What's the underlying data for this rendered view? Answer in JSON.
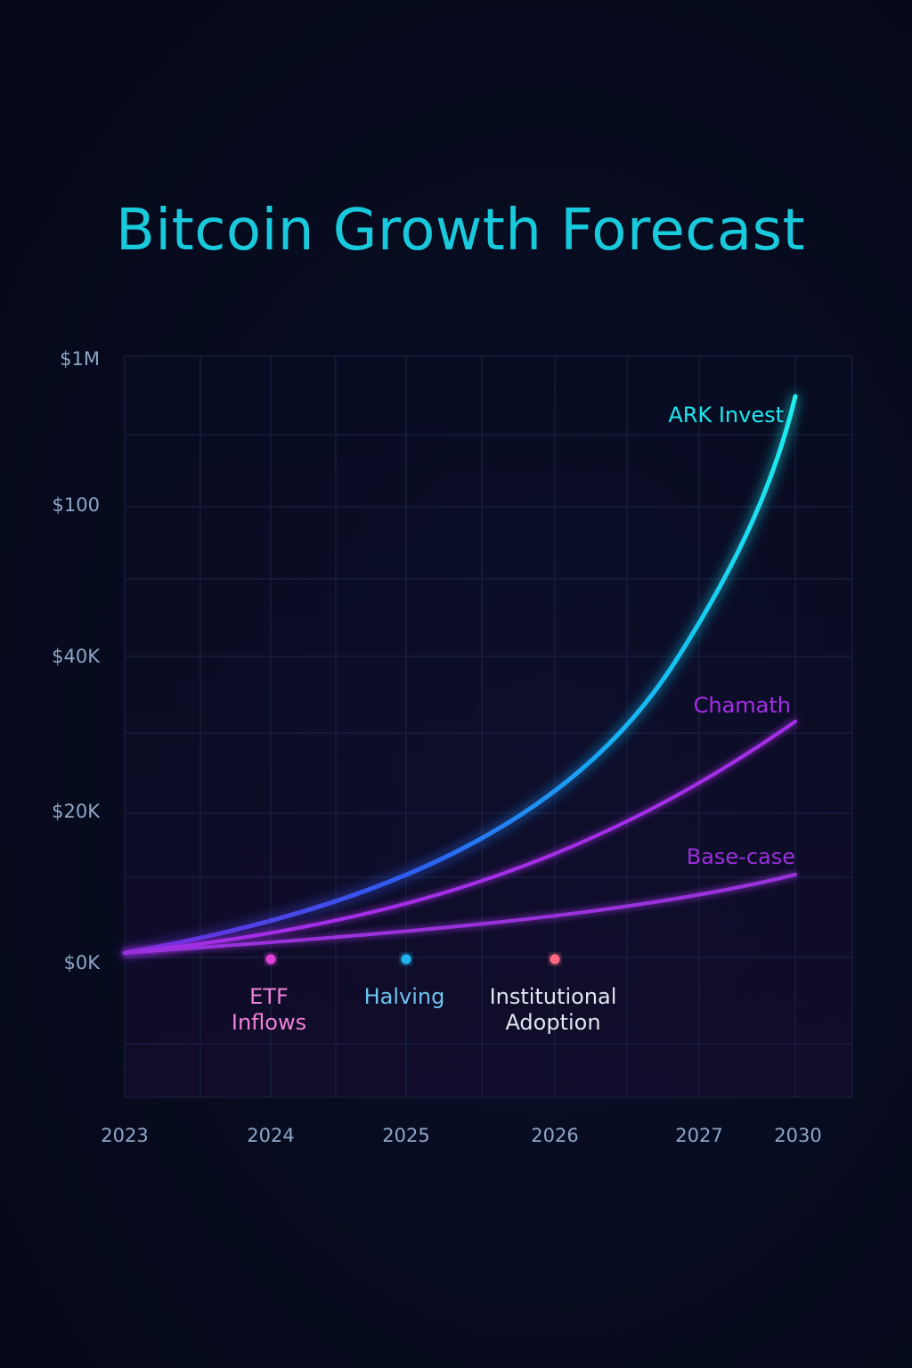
{
  "title": "Bitcoin Growth Forecast",
  "colors": {
    "background": "#070b1c",
    "title": "#19c9dc",
    "grid": "#1b2444",
    "tick_label": "#8fa6c6"
  },
  "chart_data": {
    "type": "line",
    "title": "Bitcoin Growth Forecast",
    "xlabel": "",
    "ylabel": "",
    "x_ticks": [
      "2023",
      "2024",
      "2025",
      "2026",
      "2027",
      "2030"
    ],
    "y_ticks": [
      "$0K",
      "$20K",
      "$40K",
      "$100",
      "$1M"
    ],
    "grid": true,
    "legend": "inline-labels-at-line-ends",
    "series": [
      {
        "name": "ARK Invest",
        "color": "#1ee8ec",
        "gradient_start": "#5a2bd8",
        "points": [
          {
            "x": "2023",
            "y": "$0K"
          },
          {
            "x": "2024",
            "y": "$0K+"
          },
          {
            "x": "2025",
            "y": "$20K-"
          },
          {
            "x": "2026",
            "y": "$20K+"
          },
          {
            "x": "2027",
            "y": "$40K+"
          },
          {
            "x": "2030",
            "y": "$1M-"
          }
        ]
      },
      {
        "name": "Chamath",
        "color": "#a52ee8",
        "points": [
          {
            "x": "2023",
            "y": "$0K"
          },
          {
            "x": "2024",
            "y": "$0K+"
          },
          {
            "x": "2025",
            "y": "$0K+"
          },
          {
            "x": "2026",
            "y": "$20K-"
          },
          {
            "x": "2027",
            "y": "$20K+"
          },
          {
            "x": "2030",
            "y": "$40K-"
          }
        ]
      },
      {
        "name": "Base-case",
        "color": "#9a30dc",
        "points": [
          {
            "x": "2023",
            "y": "$0K"
          },
          {
            "x": "2024",
            "y": "$0K+"
          },
          {
            "x": "2025",
            "y": "$0K+"
          },
          {
            "x": "2026",
            "y": "$0K+"
          },
          {
            "x": "2027",
            "y": "$0K+"
          },
          {
            "x": "2030",
            "y": "$20K-"
          }
        ]
      }
    ],
    "annotations": [
      {
        "x": "2024",
        "label_lines": [
          "ETF",
          "Inflows"
        ],
        "color": "#e040d8",
        "text_color": "#f080d8"
      },
      {
        "x": "2025",
        "label_lines": [
          "Halving"
        ],
        "color": "#20b4f0",
        "text_color": "#70c4f0"
      },
      {
        "x": "2026",
        "label_lines": [
          "Institutional",
          "Adoption"
        ],
        "color": "#ff6a82",
        "text_color": "#e2e6f0"
      }
    ]
  }
}
